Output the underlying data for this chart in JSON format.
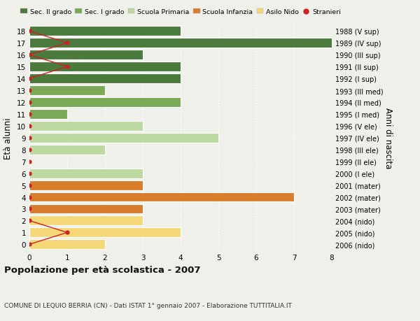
{
  "ages": [
    18,
    17,
    16,
    15,
    14,
    13,
    12,
    11,
    10,
    9,
    8,
    7,
    6,
    5,
    4,
    3,
    2,
    1,
    0
  ],
  "right_labels": [
    "1988 (V sup)",
    "1989 (IV sup)",
    "1990 (III sup)",
    "1991 (II sup)",
    "1992 (I sup)",
    "1993 (III med)",
    "1994 (II med)",
    "1995 (I med)",
    "1996 (V ele)",
    "1997 (IV ele)",
    "1998 (III ele)",
    "1999 (II ele)",
    "2000 (I ele)",
    "2001 (mater)",
    "2002 (mater)",
    "2003 (mater)",
    "2004 (nido)",
    "2005 (nido)",
    "2006 (nido)"
  ],
  "bar_values": [
    4,
    8,
    3,
    4,
    4,
    2,
    4,
    1,
    3,
    5,
    2,
    0,
    3,
    3,
    7,
    3,
    3,
    4,
    2
  ],
  "bar_colors": [
    "#4a7a3c",
    "#4a7a3c",
    "#4a7a3c",
    "#4a7a3c",
    "#4a7a3c",
    "#7aaa58",
    "#7aaa58",
    "#7aaa58",
    "#bdd8a0",
    "#bdd8a0",
    "#bdd8a0",
    "#bdd8a0",
    "#bdd8a0",
    "#d97c2b",
    "#d97c2b",
    "#d97c2b",
    "#f5d878",
    "#f5d878",
    "#f5d878"
  ],
  "stranieri_x": [
    0,
    1,
    0,
    1,
    0,
    0,
    0,
    0,
    0,
    0,
    0,
    0,
    0,
    0,
    0,
    0,
    0,
    1,
    0
  ],
  "legend_labels": [
    "Sec. II grado",
    "Sec. I grado",
    "Scuola Primaria",
    "Scuola Infanzia",
    "Asilo Nido",
    "Stranieri"
  ],
  "legend_colors": [
    "#4a7a3c",
    "#7aaa58",
    "#bdd8a0",
    "#d97c2b",
    "#f5d878",
    "#cc2222"
  ],
  "ylabel": "Età alunni",
  "right_ylabel": "Anni di nascita",
  "title": "Popolazione per età scolastica - 2007",
  "subtitle": "COMUNE DI LEQUIO BERRIA (CN) - Dati ISTAT 1° gennaio 2007 - Elaborazione TUTTITALIA.IT",
  "xlim": [
    0,
    8
  ],
  "ylim": [
    -0.5,
    18.5
  ],
  "background_color": "#f0f0eb",
  "bar_edge_color": "#ffffff",
  "stranieri_color": "#cc2222"
}
